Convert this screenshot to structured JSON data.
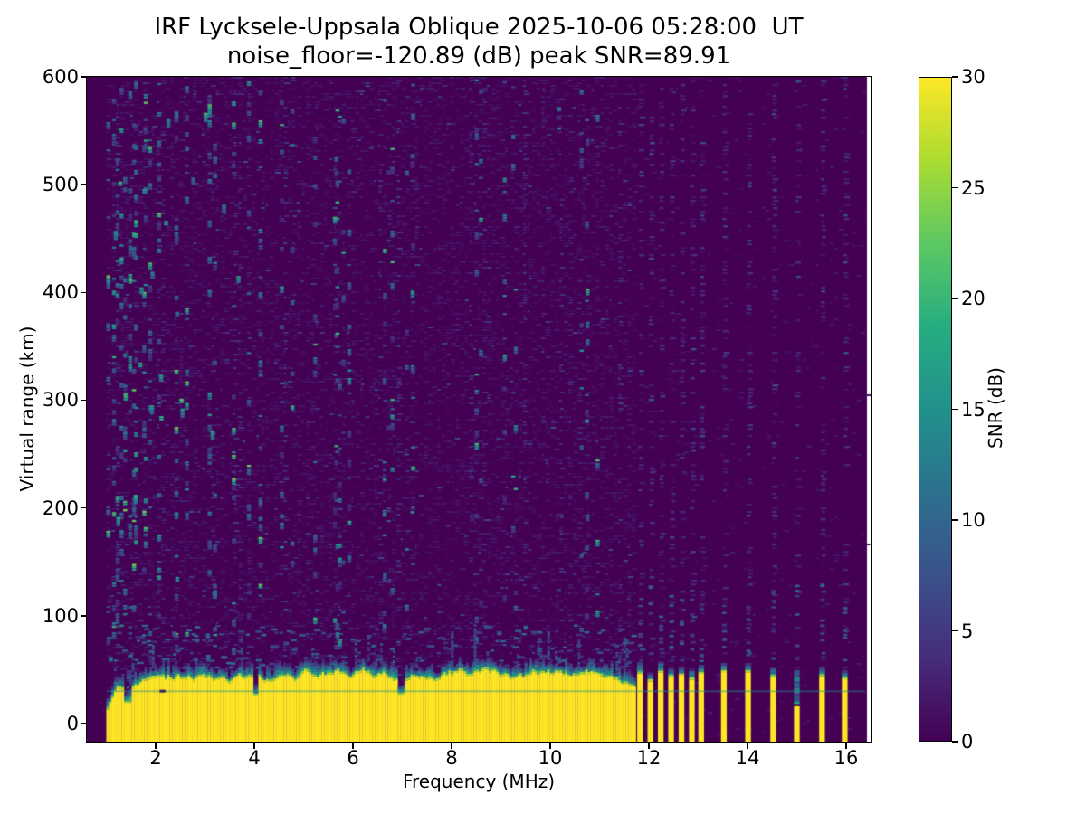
{
  "chart_data": {
    "type": "heatmap",
    "title_line1": "IRF Lycksele-Uppsala Oblique 2025-10-06 05:28:00  UT",
    "title_line2": "noise_floor=-120.89 (dB) peak SNR=89.91",
    "station": "IRF Lycksele-Uppsala Oblique",
    "date": "2025-10-06",
    "time_ut": "05:28:00",
    "noise_floor_db": -120.89,
    "peak_snr_db": 89.91,
    "xlabel": "Frequency (MHz)",
    "ylabel": "Virtual range (km)",
    "xlim_mhz": [
      0.6,
      16.5
    ],
    "ylim_km": [
      -17,
      600
    ],
    "xticks": [
      2,
      4,
      6,
      8,
      10,
      12,
      14,
      16
    ],
    "yticks": [
      0,
      100,
      200,
      300,
      400,
      500,
      600
    ],
    "grid": false,
    "colorbar": {
      "label": "SNR (dB)",
      "ticks": [
        0,
        5,
        10,
        15,
        20,
        25,
        30
      ],
      "vmin": 0,
      "vmax": 30,
      "colormap": "viridis",
      "stops": [
        [
          0,
          "#440154"
        ],
        [
          0.125,
          "#472d7b"
        ],
        [
          0.25,
          "#3b518b"
        ],
        [
          0.375,
          "#2c718e"
        ],
        [
          0.5,
          "#21918c"
        ],
        [
          0.625,
          "#27ad81"
        ],
        [
          0.75,
          "#5cc863"
        ],
        [
          0.875,
          "#aadc32"
        ],
        [
          1,
          "#fde725"
        ]
      ]
    },
    "data_freq_range_mhz": [
      1.0,
      16.42
    ],
    "echo_band": {
      "freq_start_mhz": 1.0,
      "continuous_to_mhz": 11.72,
      "base_km": -17,
      "top_km_typical": 43,
      "top_km_min": 16,
      "top_km_max": 53,
      "transition_top_km_typical": 65,
      "snr_db_core": 30,
      "snr_db_edge": 26,
      "start_ramp_cols": 7
    },
    "stripes_mhz": [
      11.82,
      12.03,
      12.24,
      12.45,
      12.66,
      12.87,
      13.06,
      13.52,
      14.01,
      14.52,
      15.0,
      15.51,
      15.97
    ],
    "weak_stripe_mhz": 15.0,
    "stripe_top_km_typical": 44,
    "horizontal_line_km": 30,
    "artifact_dash": {
      "freq_mhz": 2.08,
      "km": 30.5
    },
    "noise": {
      "fine_density_left": 0.3,
      "fine_density_right": 0.035,
      "stripe_column_density": 0.33,
      "streak_count": 46,
      "left_bright_cluster_max_mhz": 3.8,
      "band_top_fuzz_count": 230,
      "seed": 20251006
    },
    "background_color": "#440154",
    "peak_color": "#fde725"
  }
}
